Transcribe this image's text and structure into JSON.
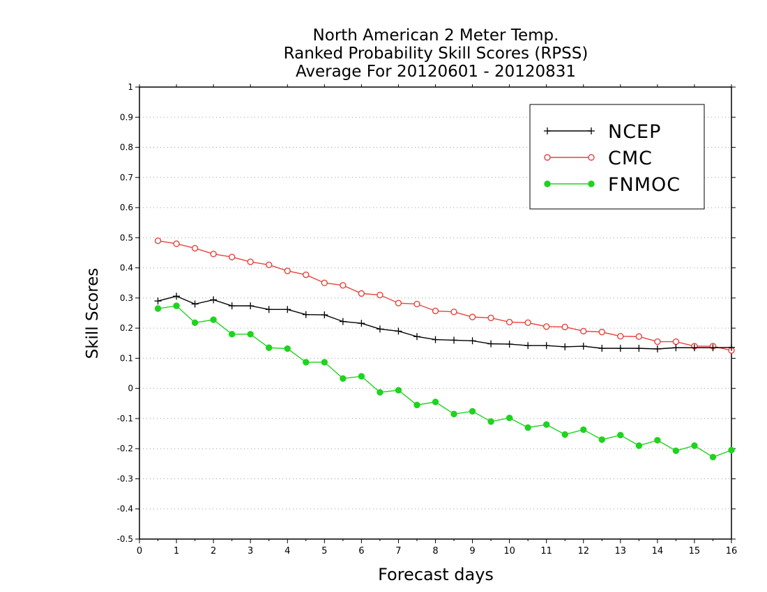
{
  "chart_data": {
    "type": "line",
    "title": [
      "North American 2 Meter Temp.",
      "Ranked Probability Skill Scores (RPSS)",
      "Average For 20120601 - 20120831"
    ],
    "xlabel": "Forecast days",
    "ylabel": "Skill Scores",
    "xlim": [
      0,
      16
    ],
    "ylim": [
      -0.5,
      1
    ],
    "xticks": [
      "0",
      "1",
      "2",
      "3",
      "4",
      "5",
      "6",
      "7",
      "8",
      "9",
      "10",
      "11",
      "12",
      "13",
      "14",
      "15",
      "16"
    ],
    "yticks": [
      "-0.5",
      "-0.4",
      "-0.3",
      "-0.2",
      "-0.1",
      "0",
      "0.1",
      "0.2",
      "0.3",
      "0.4",
      "0.5",
      "0.6",
      "0.7",
      "0.8",
      "0.9",
      "1"
    ],
    "grid": true,
    "legend_position": "top-right",
    "x": [
      0.5,
      1,
      1.5,
      2,
      2.5,
      3,
      3.5,
      4,
      4.5,
      5,
      5.5,
      6,
      6.5,
      7,
      7.5,
      8,
      8.5,
      9,
      9.5,
      10,
      10.5,
      11,
      11.5,
      12,
      12.5,
      13,
      13.5,
      14,
      14.5,
      15,
      15.5,
      16
    ],
    "series": [
      {
        "name": "NCEP",
        "color": "#000000",
        "marker": "plus",
        "values": [
          0.29,
          0.306,
          0.28,
          0.294,
          0.274,
          0.274,
          0.262,
          0.262,
          0.245,
          0.244,
          0.222,
          0.216,
          0.197,
          0.19,
          0.172,
          0.162,
          0.16,
          0.158,
          0.148,
          0.147,
          0.142,
          0.142,
          0.138,
          0.14,
          0.133,
          0.133,
          0.133,
          0.131,
          0.135,
          0.135,
          0.135,
          0.136
        ]
      },
      {
        "name": "CMC",
        "color": "#e8413c",
        "marker": "open-circle",
        "values": [
          0.49,
          0.48,
          0.465,
          0.446,
          0.436,
          0.42,
          0.41,
          0.39,
          0.377,
          0.35,
          0.342,
          0.315,
          0.31,
          0.283,
          0.28,
          0.257,
          0.254,
          0.237,
          0.234,
          0.22,
          0.218,
          0.205,
          0.204,
          0.19,
          0.187,
          0.173,
          0.172,
          0.155,
          0.155,
          0.14,
          0.14,
          0.126
        ]
      },
      {
        "name": "FNMOC",
        "color": "#1fd31f",
        "marker": "filled-circle",
        "values": [
          0.265,
          0.274,
          0.218,
          0.228,
          0.18,
          0.18,
          0.135,
          0.132,
          0.087,
          0.087,
          0.033,
          0.04,
          -0.013,
          -0.006,
          -0.055,
          -0.045,
          -0.085,
          -0.076,
          -0.11,
          -0.098,
          -0.13,
          -0.12,
          -0.153,
          -0.137,
          -0.17,
          -0.155,
          -0.19,
          -0.172,
          -0.207,
          -0.19,
          -0.228,
          -0.205
        ]
      }
    ]
  }
}
